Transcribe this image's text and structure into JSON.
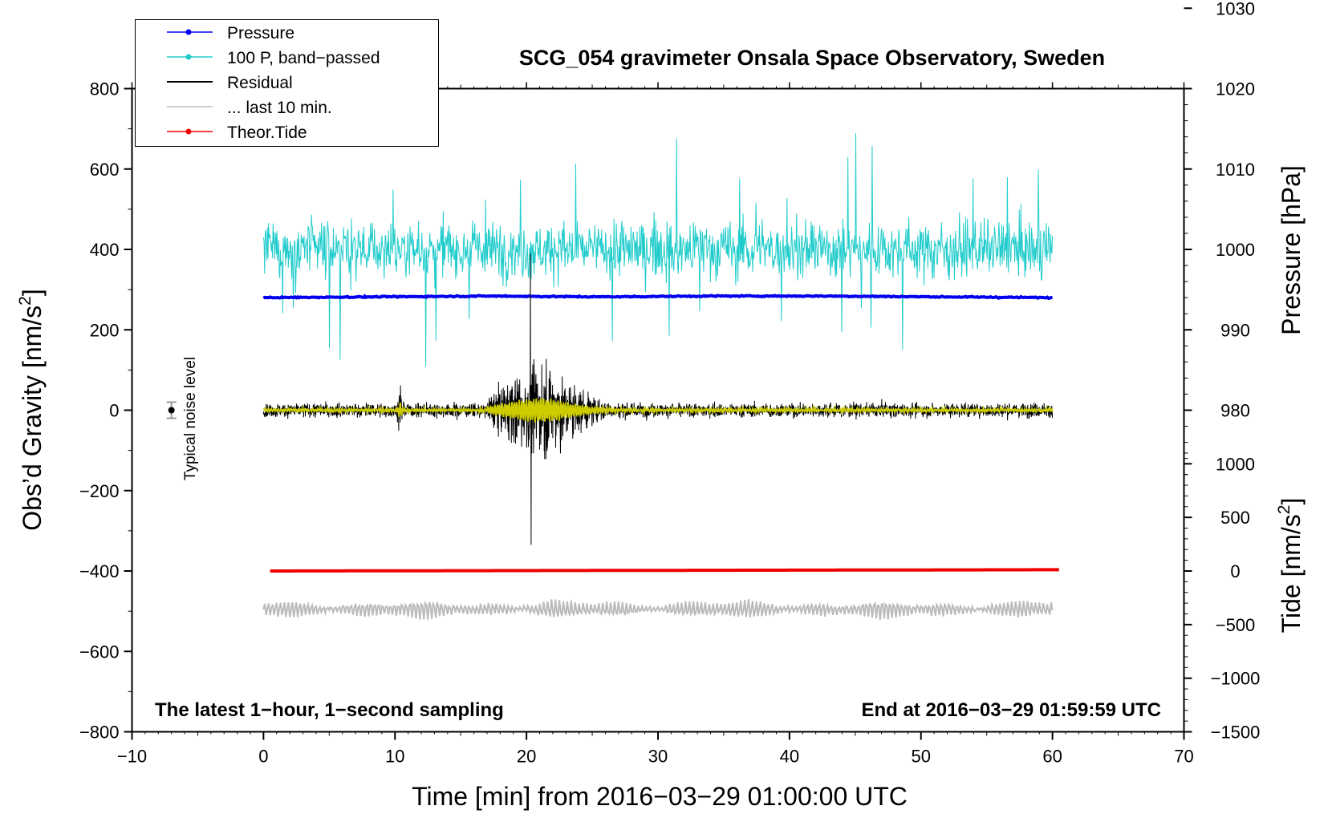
{
  "chart_data": {
    "type": "line",
    "title": "SCG_054 gravimeter Onsala Space Observatory, Sweden",
    "xlabel": "Time [min] from 2016−03−29 01:00:00 UTC",
    "ylabel_left": "Obs’d Gravity [nm/s",
    "ylabel_left_sup": "2",
    "ylabel_left_end": "]",
    "ylabel_right_top": "Pressure [hPa]",
    "ylabel_right_bottom": "Tide [nm/s",
    "ylabel_right_bottom_sup": "2",
    "ylabel_right_bottom_end": "]",
    "xlim": [
      -10,
      70
    ],
    "ylim": [
      -800,
      800
    ],
    "x_ticks": [
      -10,
      0,
      10,
      20,
      30,
      40,
      50,
      60,
      70
    ],
    "x_tick_labels": [
      "−10",
      "0",
      "10",
      "20",
      "30",
      "40",
      "50",
      "60",
      "70"
    ],
    "y_ticks": [
      -800,
      -600,
      -400,
      -200,
      0,
      200,
      400,
      600,
      800
    ],
    "y_tick_labels": [
      "−800",
      "−600",
      "−400",
      "−200",
      "0",
      "200",
      "400",
      "600",
      "800"
    ],
    "pressure_axis": {
      "ticks": [
        980,
        990,
        1000,
        1010,
        1020,
        1030
      ],
      "tick_labels": [
        "980",
        "990",
        "1000",
        "1010",
        "1020",
        "1030"
      ],
      "gravity_at_1000": 400,
      "gravity_per_hPa": 20
    },
    "tide_axis": {
      "ticks": [
        -1500,
        -1000,
        -500,
        0,
        500,
        1000
      ],
      "tick_labels": [
        "−1500",
        "−1000",
        "−500",
        "0",
        "500",
        "1000"
      ],
      "gravity_at_0": -400,
      "gravity_per_unit": 0.2667
    },
    "notes": {
      "bottom_left": "The latest 1−hour, 1−second sampling",
      "bottom_right": "End at 2016−03−29 01:59:59 UTC",
      "noise_label": "Typical noise level"
    },
    "noise_marker": {
      "x": -7,
      "y": 0,
      "err": 20
    },
    "legend": [
      {
        "label": "Pressure",
        "color": "#0000ee",
        "marker": true
      },
      {
        "label": "100 P, band−passed",
        "color": "#22cccc",
        "marker": true
      },
      {
        "label": "Residual",
        "color": "#000000",
        "marker": false
      },
      {
        "label": "... last 10 min.",
        "color": "#bbbbbb",
        "marker": false
      },
      {
        "label": "Theor.Tide",
        "color": "#ee0000",
        "marker": true
      }
    ],
    "series": [
      {
        "name": "Pressure",
        "unit": "hPa",
        "color": "#0000ee",
        "x_range": [
          0,
          60
        ],
        "values_approx": [
          994.0,
          994.1,
          994.2,
          994.1,
          994.2,
          994.2,
          994.1,
          994.0
        ]
      },
      {
        "name": "100 P, band−passed",
        "color": "#22cccc",
        "x_range": [
          0,
          60
        ],
        "baseline": 400,
        "amplitude_typical": 70,
        "amplitude_max": 250
      },
      {
        "name": "Residual",
        "color": "#000000",
        "x_range": [
          0,
          60
        ],
        "baseline": 0,
        "amplitude_typical": 25,
        "event_peak_x": 20.3,
        "event_peak": 390,
        "event_trough": -335
      },
      {
        "name": "Residual band−passed",
        "color": "#cccc00",
        "x_range": [
          0,
          60
        ],
        "baseline": 0,
        "amplitude_typical": 8
      },
      {
        "name": "... last 10 min.",
        "color": "#bbbbbb",
        "x_range": [
          0,
          60
        ],
        "baseline": -495,
        "amplitude_typical": 25
      },
      {
        "name": "Theor.Tide",
        "unit": "nm/s²",
        "color": "#ee0000",
        "x_range": [
          0.5,
          60.5
        ],
        "values": [
          0,
          12
        ]
      }
    ]
  }
}
